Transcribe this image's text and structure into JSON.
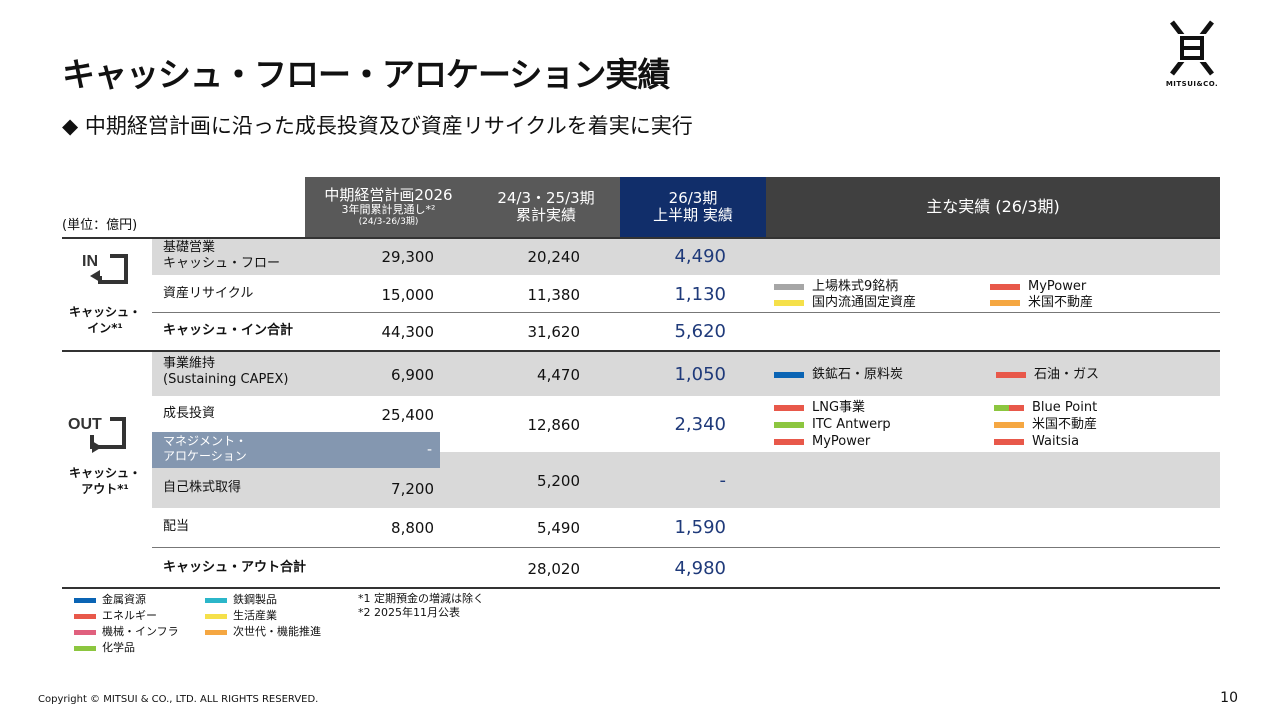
{
  "title": "キャッシュ・フロー・アロケーション実績",
  "subtitle": "◆ 中期経営計画に沿った成長投資及び資産リサイクルを着実に実行",
  "logo": {
    "name": "MITSUI&CO."
  },
  "unit_label": "(単位：億円)",
  "headers": {
    "plan_line1": "中期経営計画2026",
    "plan_line2": "3年間累計見通し*²",
    "plan_line3": "(24/3-26/3期)",
    "cumulative_line1": "24/3・25/3期",
    "cumulative_line2": "累計実績",
    "h1_line1": "26/3期",
    "h1_line2": "上半期 実績",
    "main_results": "主な実績 (26/3期)"
  },
  "sections": {
    "in_badge": "IN",
    "in_label_line1": "キャッシュ・",
    "in_label_line2": "イン*¹",
    "out_badge": "OUT",
    "out_label_line1": "キャッシュ・",
    "out_label_line2": "アウト*¹"
  },
  "rows": {
    "basic_cf": {
      "label_line1": "基礎営業",
      "label_line2": "キャッシュ・フロー",
      "plan": "29,300",
      "cum": "20,240",
      "h1": "4,490"
    },
    "asset_recycle": {
      "label": "資産リサイクル",
      "plan": "15,000",
      "cum": "11,380",
      "h1": "1,130"
    },
    "cash_in_total": {
      "label": "キャッシュ・イン合計",
      "plan": "44,300",
      "cum": "31,620",
      "h1": "5,620"
    },
    "sustaining": {
      "label_line1": "事業維持",
      "label_line2": "(Sustaining CAPEX)",
      "plan": "6,900",
      "cum": "4,470",
      "h1": "1,050"
    },
    "growth": {
      "label": "成長投資",
      "plan": "25,400",
      "cum": "12,860",
      "h1": "2,340"
    },
    "mgmt_alloc": {
      "label_line1": "マネジメント・",
      "label_line2": "アロケーション",
      "plan": "-"
    },
    "buyback": {
      "label": "自己株式取得",
      "plan": "7,200",
      "cum": "5,200",
      "h1": "-"
    },
    "dividend": {
      "label": "配当",
      "plan": "8,800",
      "cum": "5,490",
      "h1": "1,590"
    },
    "cash_out_total": {
      "label": "キャッシュ・アウト合計",
      "cum": "28,020",
      "h1": "4,980"
    }
  },
  "results_legend": {
    "recycle": [
      {
        "label": "上場株式9銘柄",
        "color": "#a6a6a6"
      },
      {
        "label": "MyPower",
        "color": "#e8584a"
      },
      {
        "label": "国内流通固定資産",
        "color": "#f5e04a"
      },
      {
        "label": "米国不動産",
        "color": "#f5a742"
      }
    ],
    "sustaining": [
      {
        "label": "鉄鉱石・原料炭",
        "color": "#0a64b4"
      },
      {
        "label": "石油・ガス",
        "color": "#e8584a"
      }
    ],
    "growth": [
      {
        "label": "LNG事業",
        "color": "#e8584a"
      },
      {
        "label": "Blue Point",
        "color": "#8cc63f",
        "color2": "#e8584a"
      },
      {
        "label": "ITC Antwerp",
        "color": "#8cc63f"
      },
      {
        "label": "米国不動産",
        "color": "#f5a742"
      },
      {
        "label": "MyPower",
        "color": "#e8584a"
      },
      {
        "label": "Waitsia",
        "color": "#e8584a"
      }
    ]
  },
  "segment_legend": [
    {
      "label": "金属資源",
      "color": "#0a64b4"
    },
    {
      "label": "エネルギー",
      "color": "#e8584a"
    },
    {
      "label": "機械・インフラ",
      "color": "#e0607e"
    },
    {
      "label": "化学品",
      "color": "#8cc63f"
    },
    {
      "label": "鉄鋼製品",
      "color": "#2bb6c9"
    },
    {
      "label": "生活産業",
      "color": "#f5e04a"
    },
    {
      "label": "次世代・機能推進",
      "color": "#f5a742"
    }
  ],
  "notes": {
    "note1": "*1 定期預金の増減は除く",
    "note2": "*2 2025年11月公表"
  },
  "footer": {
    "copyright": "Copyright © MITSUI & CO., LTD. ALL RIGHTS RESERVED.",
    "page": "10"
  }
}
